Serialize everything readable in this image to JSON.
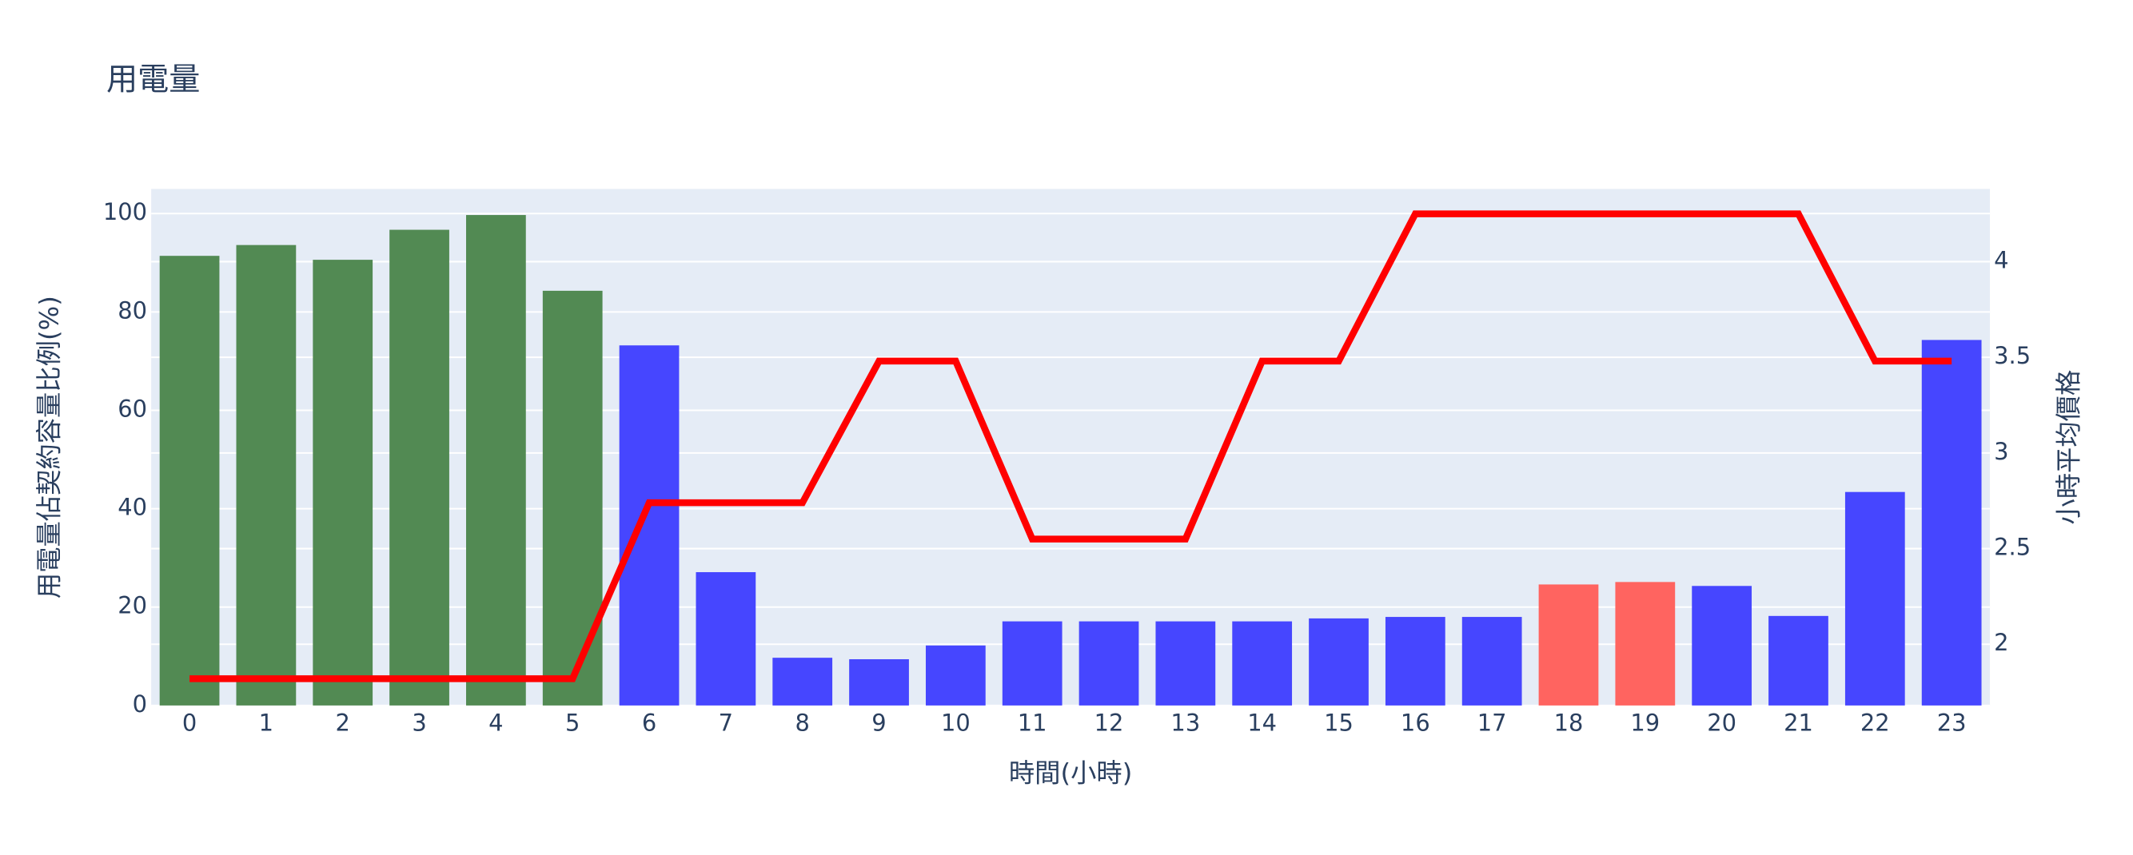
{
  "chart_data": {
    "type": "bar",
    "title": "用電量",
    "x_label": "時間(小時)",
    "y_label": "用電量佔契約容量比例(%)",
    "y2_label": "小時平均價格",
    "categories": [
      "0",
      "1",
      "2",
      "3",
      "4",
      "5",
      "6",
      "7",
      "8",
      "9",
      "10",
      "11",
      "12",
      "13",
      "14",
      "15",
      "16",
      "17",
      "18",
      "19",
      "20",
      "21",
      "22",
      "23"
    ],
    "series": [
      {
        "type": "bar",
        "values": [
          91.4,
          93.6,
          90.6,
          96.7,
          99.7,
          84.3,
          73.2,
          27.1,
          9.7,
          9.4,
          12.2,
          17.1,
          17.1,
          17.1,
          17.1,
          17.7,
          18.0,
          18.0,
          24.6,
          25.1,
          24.3,
          18.2,
          43.4,
          74.3
        ],
        "colors": [
          "#528a53",
          "#528a53",
          "#528a53",
          "#528a53",
          "#528a53",
          "#528a53",
          "#4646ff",
          "#4646ff",
          "#4646ff",
          "#4646ff",
          "#4646ff",
          "#4646ff",
          "#4646ff",
          "#4646ff",
          "#4646ff",
          "#4646ff",
          "#4646ff",
          "#4646ff",
          "#ff6460",
          "#ff6460",
          "#4646ff",
          "#4646ff",
          "#4646ff",
          "#4646ff"
        ]
      },
      {
        "type": "line",
        "axis": "y2",
        "color": "#ff0000",
        "values": [
          1.82,
          1.82,
          1.82,
          1.82,
          1.82,
          1.82,
          2.74,
          2.74,
          2.74,
          3.48,
          3.48,
          2.55,
          2.55,
          2.55,
          3.48,
          3.48,
          4.25,
          4.25,
          4.25,
          4.25,
          4.25,
          4.25,
          3.48,
          3.48
        ]
      }
    ],
    "ylim": [
      0,
      105
    ],
    "yticks": [
      0,
      20,
      40,
      60,
      80,
      100
    ],
    "y2lim": [
      1.68,
      4.38
    ],
    "y2ticks": [
      2,
      2.5,
      3,
      3.5,
      4
    ],
    "grid": true
  }
}
